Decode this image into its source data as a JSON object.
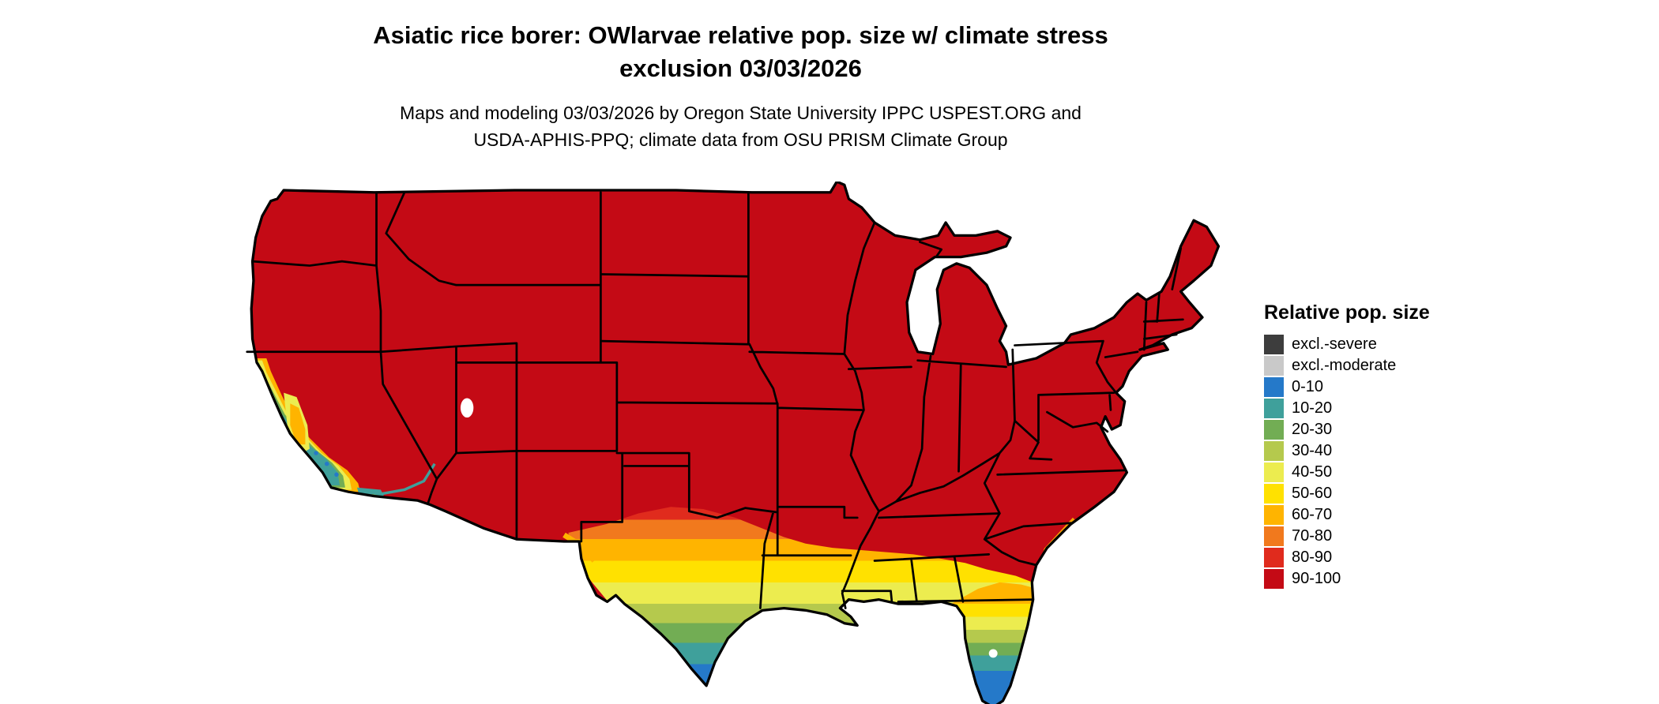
{
  "title": {
    "line1": "Asiatic rice borer: OWlarvae relative pop. size w/ climate stress",
    "line2": "exclusion 03/03/2026"
  },
  "subtitle": {
    "line1": "Maps and modeling 03/03/2026 by Oregon State University IPPC USPEST.ORG and",
    "line2": "USDA-APHIS-PPQ; climate data from OSU PRISM Climate Group"
  },
  "legend": {
    "title": "Relative pop. size",
    "items": [
      {
        "label": "excl.-severe",
        "color_key": "excl_severe"
      },
      {
        "label": "excl.-moderate",
        "color_key": "excl_moderate"
      },
      {
        "label": "0-10",
        "color_key": "c0_10"
      },
      {
        "label": "10-20",
        "color_key": "c10_20"
      },
      {
        "label": "20-30",
        "color_key": "c20_30"
      },
      {
        "label": "30-40",
        "color_key": "c30_40"
      },
      {
        "label": "40-50",
        "color_key": "c40_50"
      },
      {
        "label": "50-60",
        "color_key": "c50_60"
      },
      {
        "label": "60-70",
        "color_key": "c60_70"
      },
      {
        "label": "70-80",
        "color_key": "c70_80"
      },
      {
        "label": "80-90",
        "color_key": "c80_90"
      },
      {
        "label": "90-100",
        "color_key": "c90_100"
      }
    ]
  },
  "colors": {
    "excl_severe": "#3d3d3d",
    "excl_moderate": "#c9c9c9",
    "c0_10": "#2579c9",
    "c10_20": "#3fa09b",
    "c20_30": "#72ad54",
    "c30_40": "#b5c94d",
    "c40_50": "#ecec4f",
    "c50_60": "#ffe100",
    "c60_70": "#ffb400",
    "c70_80": "#f1791d",
    "c80_90": "#e02b1d",
    "c90_100": "#c40a15",
    "state_border": "#000000",
    "water": "#ffffff"
  },
  "map": {
    "description": "Continental US choropleth of relative population size",
    "no_data_fill": "#ffffff"
  }
}
